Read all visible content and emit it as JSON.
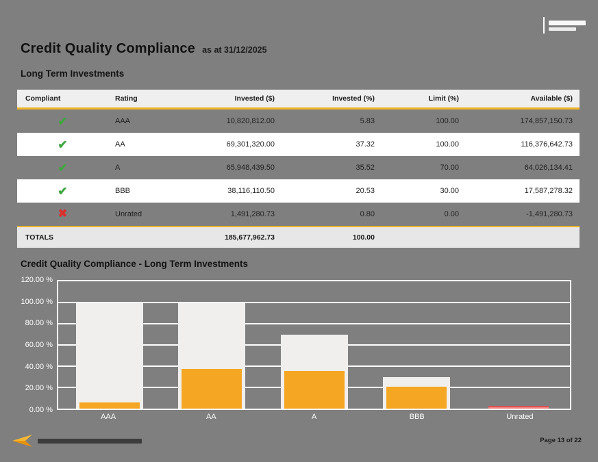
{
  "page": {
    "title": "Credit Quality Compliance",
    "as_at": "as at 31/12/2025",
    "section_title": "Long Term Investments"
  },
  "icons": {
    "compliant_icon": "✔",
    "noncompliant_icon": "✖",
    "header_logo": "brand-mark",
    "footer_logo": "company-arrow-logo"
  },
  "table": {
    "columns": [
      "Compliant",
      "Rating",
      "Invested ($)",
      "Invested (%)",
      "Limit (%)",
      "Available ($)"
    ],
    "rows": [
      {
        "compliant": true,
        "rating": "AAA",
        "invested": "10,820,812.00",
        "invested_pct": "5.83",
        "limit_pct": "100.00",
        "available": "174,857,150.73"
      },
      {
        "compliant": true,
        "rating": "AA",
        "invested": "69,301,320.00",
        "invested_pct": "37.32",
        "limit_pct": "100.00",
        "available": "116,376,642.73"
      },
      {
        "compliant": true,
        "rating": "A",
        "invested": "65,948,439.50",
        "invested_pct": "35.52",
        "limit_pct": "70.00",
        "available": "64,026,134.41"
      },
      {
        "compliant": true,
        "rating": "BBB",
        "invested": "38,116,110.50",
        "invested_pct": "20.53",
        "limit_pct": "30.00",
        "available": "17,587,278.32"
      },
      {
        "compliant": false,
        "rating": "Unrated",
        "invested": "1,491,280.73",
        "invested_pct": "0.80",
        "limit_pct": "0.00",
        "available": "-1,491,280.73"
      }
    ],
    "totals": {
      "label": "TOTALS",
      "invested": "185,677,962.73",
      "invested_pct": "100.00"
    }
  },
  "chart_data": {
    "type": "bar",
    "title": "Credit Quality Compliance - Long Term Investments",
    "categories": [
      "AAA",
      "AA",
      "A",
      "BBB",
      "Unrated"
    ],
    "series": [
      {
        "name": "Limit (%)",
        "values": [
          100,
          100,
          70,
          30,
          0
        ]
      },
      {
        "name": "Invested (%)",
        "values": [
          5.83,
          37.32,
          35.52,
          20.53,
          0.8
        ]
      }
    ],
    "ylim": [
      0,
      120
    ],
    "ytick_labels": [
      "120.00 %",
      "100.00 %",
      "80.00 %",
      "60.00 %",
      "40.00 %",
      "20.00 %",
      "0.00 %"
    ],
    "grid": true,
    "legend_position": "none"
  },
  "footer": {
    "page_label": "Page 13 of 22"
  },
  "colors": {
    "page_bg": "#7f7f7f",
    "accent_gold": "#f0b429",
    "limit_bar": "#f0efed",
    "invested_bar": "#f5a623",
    "breach_bar": "#ef8585",
    "check_green": "#3fa63f",
    "cross_red": "#d9302c"
  }
}
